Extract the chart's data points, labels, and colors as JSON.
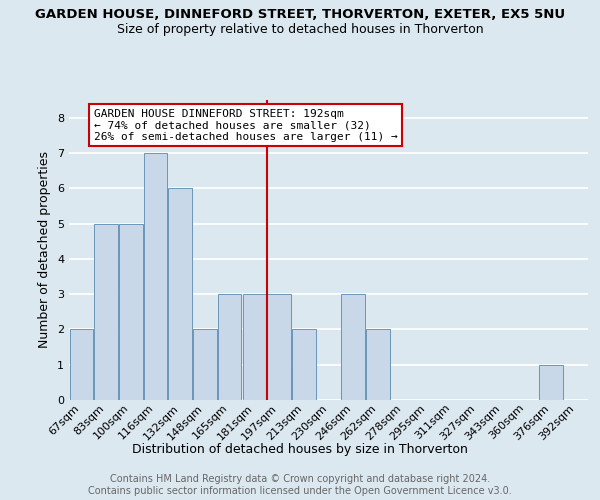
{
  "title": "GARDEN HOUSE, DINNEFORD STREET, THORVERTON, EXETER, EX5 5NU",
  "subtitle": "Size of property relative to detached houses in Thorverton",
  "xlabel": "Distribution of detached houses by size in Thorverton",
  "ylabel": "Number of detached properties",
  "footer_line1": "Contains HM Land Registry data © Crown copyright and database right 2024.",
  "footer_line2": "Contains public sector information licensed under the Open Government Licence v3.0.",
  "categories": [
    "67sqm",
    "83sqm",
    "100sqm",
    "116sqm",
    "132sqm",
    "148sqm",
    "165sqm",
    "181sqm",
    "197sqm",
    "213sqm",
    "230sqm",
    "246sqm",
    "262sqm",
    "278sqm",
    "295sqm",
    "311sqm",
    "327sqm",
    "343sqm",
    "360sqm",
    "376sqm",
    "392sqm"
  ],
  "values": [
    2,
    5,
    5,
    7,
    6,
    2,
    3,
    3,
    3,
    2,
    0,
    3,
    2,
    0,
    0,
    0,
    0,
    0,
    0,
    1,
    0
  ],
  "bar_color": "#c8d8e8",
  "bar_edge_color": "#5a8ab0",
  "reference_line_x": 7.5,
  "annotation_text_line1": "GARDEN HOUSE DINNEFORD STREET: 192sqm",
  "annotation_text_line2": "← 74% of detached houses are smaller (32)",
  "annotation_text_line3": "26% of semi-detached houses are larger (11) →",
  "annotation_box_color": "#ffffff",
  "annotation_box_edge": "#cc0000",
  "reference_line_color": "#cc0000",
  "ylim": [
    0,
    8.5
  ],
  "yticks": [
    0,
    1,
    2,
    3,
    4,
    5,
    6,
    7,
    8
  ],
  "bg_color": "#dce8f0",
  "plot_bg_color": "#dce8f0",
  "grid_color": "#ffffff",
  "title_fontsize": 9.5,
  "subtitle_fontsize": 9,
  "xlabel_fontsize": 9,
  "ylabel_fontsize": 9,
  "tick_fontsize": 8,
  "annotation_fontsize": 8,
  "footer_fontsize": 7
}
